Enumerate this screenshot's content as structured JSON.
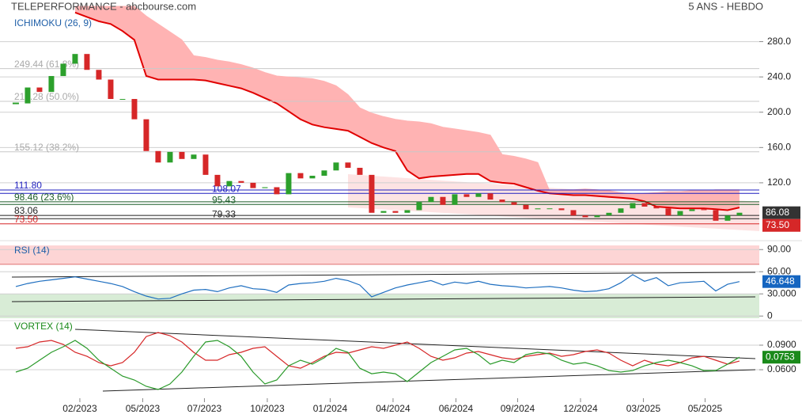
{
  "header": {
    "title": "TELEPERFORMANCE - abcbourse.com",
    "period": "5 ANS - HEBDO"
  },
  "chart_data": [
    {
      "type": "candlestick",
      "title": "ICHIMOKU (26, 9)",
      "up_color": "#2ca02c",
      "down_color": "#d62728",
      "cloud_color": "#ffb3b3",
      "cloud_line_color": "#e00000",
      "xlim": [
        -1.33,
        62.67
      ],
      "ylim": [
        58,
        320
      ],
      "yticks": [
        {
          "value": 120,
          "label": "120.0"
        },
        {
          "value": 160,
          "label": "160.0"
        },
        {
          "value": 200,
          "label": "200.0"
        },
        {
          "value": 240,
          "label": "240.0"
        },
        {
          "value": 280,
          "label": "280.0"
        }
      ],
      "values": [
        210,
        228,
        223,
        241,
        255,
        266,
        248,
        237,
        215,
        215,
        192,
        156,
        143,
        155,
        147,
        152,
        129,
        116,
        122,
        120,
        114,
        115,
        107,
        131,
        125,
        128,
        134,
        143,
        137,
        129,
        86,
        88,
        86,
        89,
        98,
        104,
        95,
        107,
        104,
        108,
        101,
        98,
        95,
        90,
        91,
        91,
        89,
        83,
        81,
        83,
        86,
        91,
        97,
        93,
        91,
        83,
        88,
        90,
        89,
        77,
        83,
        86.08
      ],
      "cloud_upper": [
        null,
        null,
        null,
        null,
        null,
        320,
        320,
        320,
        320,
        320,
        320,
        309,
        300,
        291,
        282,
        264,
        262,
        259,
        257,
        254,
        250,
        245,
        241,
        240,
        239,
        238,
        235,
        230,
        220,
        205,
        199,
        195,
        192,
        190,
        189,
        187,
        183,
        181,
        179,
        177,
        174,
        152,
        150,
        147,
        143,
        111,
        112,
        112,
        113,
        112,
        111,
        109,
        107,
        108,
        109,
        110,
        110,
        111,
        111,
        112,
        112,
        112
      ],
      "cloud_lower": [
        null,
        null,
        null,
        null,
        null,
        313,
        308,
        303,
        300,
        292,
        282,
        241,
        237,
        237,
        237,
        237,
        236,
        233,
        230,
        227,
        222,
        216,
        210,
        201,
        192,
        186,
        183,
        181,
        179,
        172,
        165,
        160,
        156,
        134,
        125,
        127,
        128,
        129,
        130,
        130,
        122,
        120,
        119,
        115,
        111,
        108,
        107,
        106,
        106,
        105,
        104,
        103,
        102,
        99,
        93,
        92,
        91,
        91,
        91,
        90,
        89,
        92
      ],
      "levels": [
        {
          "value": 249.44,
          "label": "249.44 (61.8%)",
          "color": "#c8c8c8"
        },
        {
          "value": 212.28,
          "label": "212.28 (50.0%)",
          "color": "#c8c8c8"
        },
        {
          "value": 155.12,
          "label": "155.12 (38.2%)",
          "color": "#c8c8c8"
        },
        {
          "value": 111.8,
          "label": "111.80",
          "color": "#1f1fbf"
        },
        {
          "value": 108.07,
          "label": "108.07",
          "color": "#1f1fbf"
        },
        {
          "value": 98.46,
          "label": "98.46 (23.6%)",
          "color": "#1d5e2a"
        },
        {
          "value": 95.43,
          "label": "95.43",
          "color": "#1d5e2a"
        },
        {
          "value": 83.06,
          "label": "83.06",
          "color": "#222222"
        },
        {
          "value": 79.33,
          "label": "79.33",
          "color": "#222222"
        },
        {
          "value": 73.5,
          "label": "73.50",
          "color": "#d62728"
        }
      ]
    },
    {
      "type": "line",
      "title": "RSI (14)",
      "color": "#1f6fc0",
      "xlim": [
        -1.33,
        62.67
      ],
      "ylim": [
        -3,
        95.6
      ],
      "yticks": [
        0,
        {
          "value": 30,
          "label": "30.000"
        },
        {
          "value": 60,
          "label": "60.00"
        },
        {
          "value": 90,
          "label": "90.00"
        }
      ],
      "upper_band": 70,
      "lower_band": 30,
      "upper_color": "#fdd5d5",
      "lower_color": "#d8ecd6",
      "values": [
        40,
        44,
        47,
        49,
        51,
        53,
        50,
        47,
        44,
        40,
        33,
        27,
        23,
        24,
        30,
        35,
        36,
        33,
        38,
        41,
        37,
        36,
        32,
        42,
        44,
        45,
        47,
        51,
        48,
        42,
        26,
        32,
        38,
        42,
        45,
        48,
        42,
        46,
        44,
        47,
        43,
        41,
        40,
        38,
        39,
        40,
        38,
        35,
        33,
        34,
        37,
        45,
        56,
        47,
        52,
        41,
        45,
        46,
        47,
        34,
        43,
        46.648
      ]
    },
    {
      "type": "line",
      "title": "VORTEX (14)",
      "xlim": [
        -1.33,
        62.67
      ],
      "ylim": [
        0.0281,
        0.1171
      ],
      "yticks": [
        {
          "value": 0.06,
          "label": "0.0600"
        },
        {
          "value": 0.09,
          "label": "0.0900"
        }
      ],
      "xticks": [
        {
          "value": 5.4,
          "label": "02/2023"
        },
        {
          "value": 10.7,
          "label": "05/2023"
        },
        {
          "value": 15.9,
          "label": "07/2023"
        },
        {
          "value": 21.2,
          "label": "10/2023"
        },
        {
          "value": 26.5,
          "label": "01/2024"
        },
        {
          "value": 31.8,
          "label": "04/2024"
        },
        {
          "value": 37.1,
          "label": "06/2024"
        },
        {
          "value": 42.3,
          "label": "09/2024"
        },
        {
          "value": 47.6,
          "label": "12/2024"
        },
        {
          "value": 52.9,
          "label": "03/2025"
        },
        {
          "value": 58.1,
          "label": "05/2025"
        }
      ],
      "series": [
        {
          "color": "#d62728",
          "values": [
            0.0861,
            0.0881,
            0.0939,
            0.0958,
            0.091,
            0.0813,
            0.0764,
            0.0687,
            0.0648,
            0.0687,
            0.0813,
            0.1006,
            0.1055,
            0.1016,
            0.0939,
            0.0813,
            0.0716,
            0.0716,
            0.0784,
            0.0813,
            0.0861,
            0.0881,
            0.0764,
            0.0648,
            0.0619,
            0.0687,
            0.0764,
            0.0813,
            0.0803,
            0.0842,
            0.0881,
            0.0861,
            0.09,
            0.0939,
            0.0861,
            0.0764,
            0.0716,
            0.0745,
            0.0803,
            0.0823,
            0.0784,
            0.0745,
            0.0726,
            0.0764,
            0.0784,
            0.0803,
            0.0764,
            0.0784,
            0.0823,
            0.0842,
            0.0803,
            0.0716,
            0.0648,
            0.0716,
            0.0668,
            0.0648,
            0.0687,
            0.0745,
            0.0764,
            0.0716,
            0.0668,
            0.0706
          ]
        },
        {
          "color": "#2a9a2a",
          "values": [
            0.0571,
            0.0619,
            0.0716,
            0.0813,
            0.0881,
            0.0958,
            0.0861,
            0.0716,
            0.0619,
            0.0522,
            0.0474,
            0.0397,
            0.0358,
            0.0426,
            0.0571,
            0.0764,
            0.0939,
            0.0958,
            0.0881,
            0.0764,
            0.0571,
            0.0426,
            0.0474,
            0.0648,
            0.0716,
            0.0668,
            0.0745,
            0.0861,
            0.0813,
            0.0619,
            0.0551,
            0.0571,
            0.0551,
            0.0455,
            0.0571,
            0.0687,
            0.0764,
            0.0842,
            0.0861,
            0.0784,
            0.0668,
            0.0716,
            0.0687,
            0.0784,
            0.0813,
            0.0794,
            0.0716,
            0.0668,
            0.0687,
            0.0648,
            0.059,
            0.0571,
            0.059,
            0.0648,
            0.0687,
            0.0716,
            0.0687,
            0.0648,
            0.059,
            0.059,
            0.0668,
            0.0753
          ]
        }
      ]
    }
  ]
}
